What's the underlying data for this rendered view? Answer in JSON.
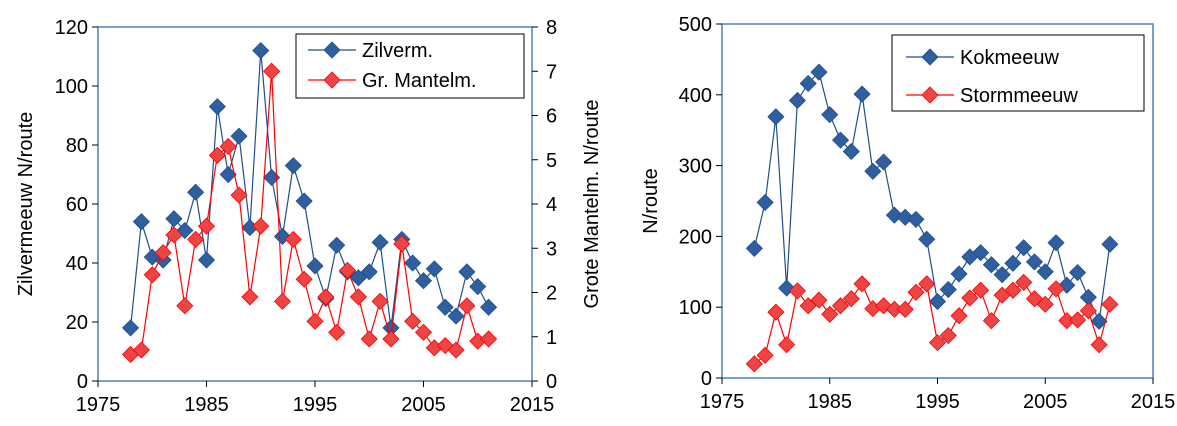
{
  "chart_data": [
    {
      "type": "line",
      "x": [
        1978,
        1979,
        1980,
        1981,
        1982,
        1983,
        1984,
        1985,
        1986,
        1987,
        1988,
        1989,
        1990,
        1991,
        1992,
        1993,
        1994,
        1995,
        1996,
        1997,
        1998,
        1999,
        2000,
        2001,
        2002,
        2003,
        2004,
        2005,
        2006,
        2007,
        2008,
        2009,
        2010,
        2011
      ],
      "ylabel": "Zilvermeeuw N/route",
      "y2label": "Grote Mantelm. N/route",
      "xlim": [
        1975,
        2015
      ],
      "ylim": [
        0,
        120
      ],
      "y2lim": [
        0,
        8
      ],
      "xticks": [
        "1975",
        "1985",
        "1995",
        "2005",
        "2015"
      ],
      "yticks": [
        "0",
        "20",
        "40",
        "60",
        "80",
        "100",
        "120"
      ],
      "y2ticks": [
        "0",
        "1",
        "2",
        "3",
        "4",
        "5",
        "6",
        "7",
        "8"
      ],
      "legend_position": "top-right",
      "series": [
        {
          "name": "Zilverm.",
          "axis": "left",
          "color": "#1f4e8c",
          "marker_color": "#2f5f9f",
          "values": [
            18,
            54,
            42,
            41,
            55,
            51,
            64,
            41,
            93,
            70,
            83,
            52,
            112,
            69,
            49,
            73,
            61,
            39,
            28,
            46,
            37,
            35,
            37,
            47,
            18,
            48,
            40,
            34,
            38,
            25,
            22,
            37,
            32,
            25
          ]
        },
        {
          "name": "Gr. Mantelm.",
          "axis": "right",
          "color": "#ff0000",
          "marker_color": "#ee4444",
          "values": [
            0.6,
            0.7,
            2.4,
            2.9,
            3.3,
            1.7,
            3.2,
            3.5,
            5.1,
            5.3,
            4.2,
            1.9,
            3.5,
            7.0,
            1.8,
            3.2,
            2.3,
            1.35,
            1.9,
            1.1,
            2.5,
            1.9,
            0.95,
            1.8,
            0.95,
            3.1,
            1.35,
            1.1,
            0.75,
            0.8,
            0.7,
            1.7,
            0.9,
            0.95
          ]
        }
      ]
    },
    {
      "type": "line",
      "x": [
        1978,
        1979,
        1980,
        1981,
        1982,
        1983,
        1984,
        1985,
        1986,
        1987,
        1988,
        1989,
        1990,
        1991,
        1992,
        1993,
        1994,
        1995,
        1996,
        1997,
        1998,
        1999,
        2000,
        2001,
        2002,
        2003,
        2004,
        2005,
        2006,
        2007,
        2008,
        2009,
        2010,
        2011
      ],
      "ylabel": "N/route",
      "xlim": [
        1975,
        2015
      ],
      "ylim": [
        0,
        500
      ],
      "xticks": [
        "1975",
        "1985",
        "1995",
        "2005",
        "2015"
      ],
      "yticks": [
        "0",
        "100",
        "200",
        "300",
        "400",
        "500"
      ],
      "legend_position": "top-right",
      "series": [
        {
          "name": "Kokmeeuw",
          "color": "#1f4e8c",
          "marker_color": "#2f5f9f",
          "values": [
            183,
            248,
            369,
            127,
            392,
            416,
            432,
            372,
            336,
            320,
            401,
            292,
            305,
            230,
            227,
            224,
            196,
            108,
            125,
            147,
            171,
            177,
            160,
            146,
            162,
            184,
            164,
            150,
            191,
            131,
            149,
            114,
            80,
            189
          ]
        },
        {
          "name": "Stormmeeuw",
          "color": "#ff0000",
          "marker_color": "#ee4444",
          "values": [
            20,
            32,
            93,
            47,
            123,
            102,
            110,
            90,
            102,
            112,
            133,
            98,
            102,
            97,
            97,
            121,
            133,
            50,
            60,
            88,
            113,
            124,
            81,
            117,
            124,
            135,
            112,
            104,
            126,
            81,
            82,
            95,
            47,
            104
          ]
        }
      ]
    }
  ]
}
